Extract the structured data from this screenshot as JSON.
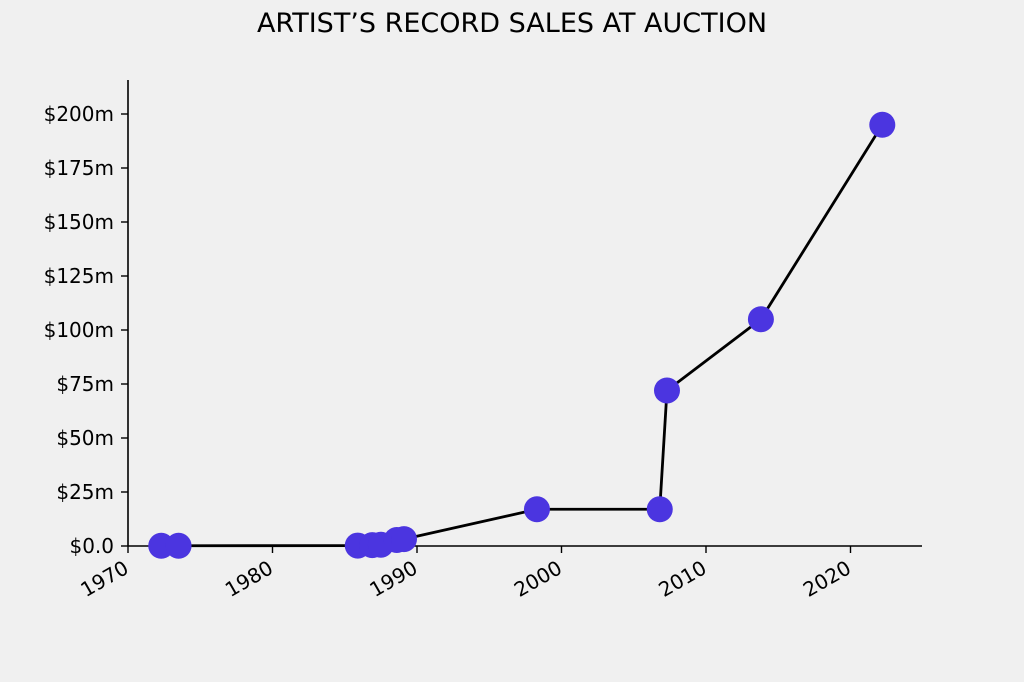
{
  "chart_data": {
    "type": "line",
    "title": "ARTIST’S RECORD SALES AT AUCTION",
    "xlabel": "",
    "ylabel": "",
    "xlim": [
      1970,
      2025
    ],
    "ylim": [
      0,
      215
    ],
    "x_ticks": [
      1970,
      1980,
      1990,
      2000,
      2010,
      2020
    ],
    "x_tick_labels": [
      "1970",
      "1980",
      "1990",
      "2000",
      "2010",
      "2020"
    ],
    "y_ticks": [
      0,
      25,
      50,
      75,
      100,
      125,
      150,
      175,
      200
    ],
    "y_tick_labels": [
      "$0.0",
      "$25m",
      "$50m",
      "$75m",
      "$100m",
      "$125m",
      "$150m",
      "$175m",
      "$200m"
    ],
    "grid": false,
    "series": [
      {
        "color": "#4b35e0",
        "line_color": "#000000",
        "points": [
          {
            "x": 1972.3,
            "y": 0.1
          },
          {
            "x": 1973.5,
            "y": 0.1
          },
          {
            "x": 1985.9,
            "y": 0.2
          },
          {
            "x": 1986.9,
            "y": 0.4
          },
          {
            "x": 1987.5,
            "y": 0.6
          },
          {
            "x": 1988.6,
            "y": 2.8
          },
          {
            "x": 1989.1,
            "y": 3.2
          },
          {
            "x": 1998.3,
            "y": 17
          },
          {
            "x": 2006.8,
            "y": 17
          },
          {
            "x": 2007.3,
            "y": 72
          },
          {
            "x": 2013.8,
            "y": 105
          },
          {
            "x": 2022.2,
            "y": 195
          }
        ]
      }
    ]
  }
}
